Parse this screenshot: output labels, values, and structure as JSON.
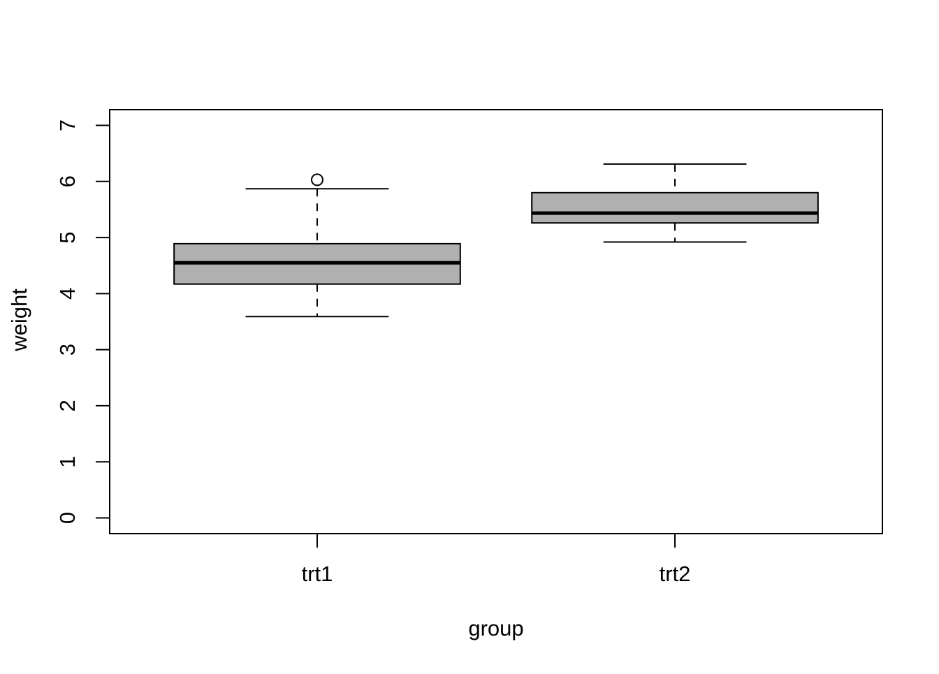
{
  "figure": {
    "background": "#ffffff",
    "kind": "R base graphics boxplot"
  },
  "chart_data": {
    "type": "boxplot",
    "title": "",
    "xlabel": "group",
    "ylabel": "weight",
    "categories": [
      "trt1",
      "trt2"
    ],
    "y_ticks": [
      0,
      1,
      2,
      3,
      4,
      5,
      6,
      7
    ],
    "ylim": [
      0,
      7
    ],
    "xlim": [
      0.5,
      2.5
    ],
    "grid": false,
    "legend": null,
    "box_fill": "#b0b0b0",
    "line_color": "#000000",
    "outlier_fill": "#ffffff",
    "series": [
      {
        "name": "trt1",
        "x": 1,
        "whisker_low": 3.59,
        "q1": 4.17,
        "median": 4.55,
        "q3": 4.89,
        "whisker_high": 5.87,
        "outliers": [
          6.03
        ]
      },
      {
        "name": "trt2",
        "x": 2,
        "whisker_low": 4.92,
        "q1": 5.26,
        "median": 5.435,
        "q3": 5.8,
        "whisker_high": 6.31,
        "outliers": []
      }
    ]
  }
}
